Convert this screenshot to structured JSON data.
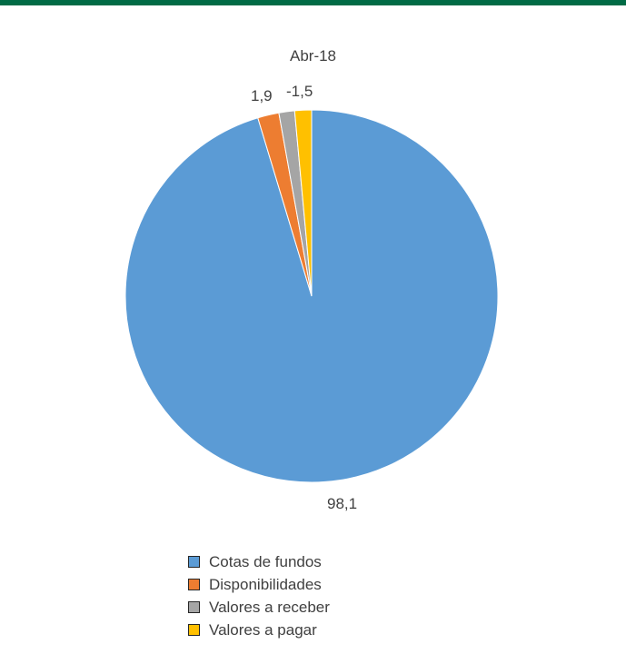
{
  "chart_data": {
    "type": "pie",
    "title": "Abr-18",
    "categories": [
      "Cotas de fundos",
      "Disponibilidades",
      "Valores a receber",
      "Valores a pagar"
    ],
    "values": [
      98.1,
      1.9,
      1.4,
      -1.5
    ],
    "data_labels": [
      "98,1",
      "1,9",
      "",
      "-1,5"
    ],
    "colors": [
      "#5b9bd5",
      "#ed7d31",
      "#a5a5a5",
      "#ffc000"
    ],
    "legend_position": "bottom"
  },
  "legend": {
    "items": [
      {
        "label": "Cotas de fundos",
        "color": "#5b9bd5"
      },
      {
        "label": "Disponibilidades",
        "color": "#ed7d31"
      },
      {
        "label": "Valores a receber",
        "color": "#a5a5a5"
      },
      {
        "label": "Valores a pagar",
        "color": "#ffc000"
      }
    ]
  },
  "header": {
    "bar_color": "#006b45"
  }
}
